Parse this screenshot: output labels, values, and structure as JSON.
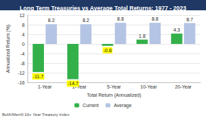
{
  "chart_data": {
    "type": "bar",
    "title": "Long Term Treasuries vs Average Total Returns: 1977 - 2023",
    "xlabel": "Total Return (Annualized)",
    "ylabel": "Annualized Return (%)",
    "source": "BofA/Merrill 10+ Year Treasury Index",
    "categories": [
      "1-Year",
      "2-Year",
      "5-Year",
      "10-Year",
      "20-Year"
    ],
    "series": [
      {
        "name": "Current",
        "color": "#34b04a",
        "values": [
          -11.7,
          -14.7,
          -0.8,
          1.8,
          4.3
        ]
      },
      {
        "name": "Average",
        "color": "#b4c4e4",
        "values": [
          8.2,
          8.2,
          8.8,
          8.8,
          8.7
        ]
      }
    ],
    "ylim": [
      -16,
      12
    ],
    "yticks": [
      -16,
      -12,
      -8,
      -4,
      0,
      4,
      8,
      12
    ],
    "grid": true,
    "legend": "bottom",
    "data_labels": true
  }
}
